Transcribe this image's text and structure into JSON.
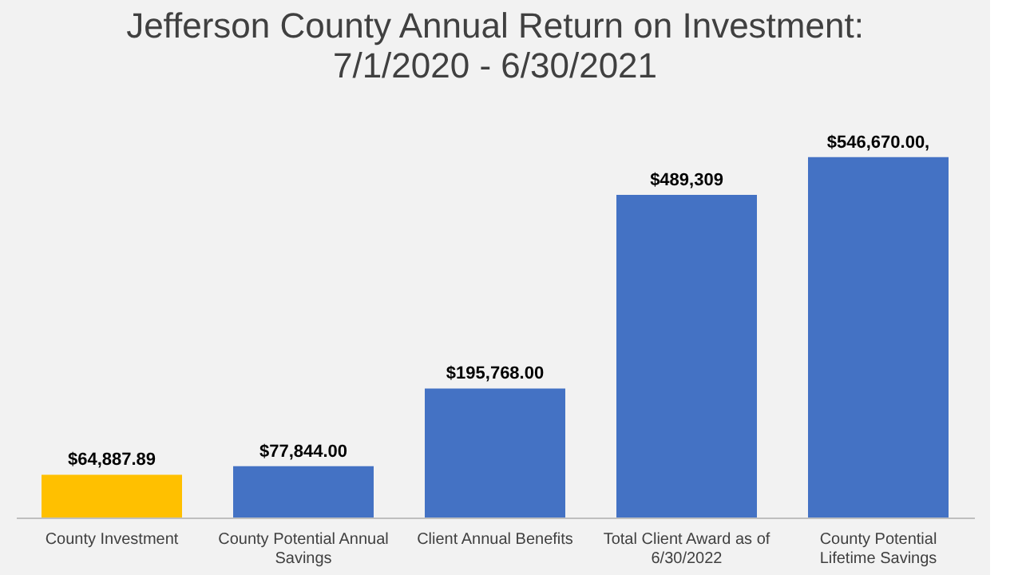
{
  "chart_data": {
    "type": "bar",
    "title": "Jefferson County Annual Return on Investment:",
    "subtitle": "7/1/2020 - 6/30/2021",
    "categories": [
      "County Investment",
      "County Potential Annual Savings",
      "Client Annual Benefits",
      "Total Client Award as of 6/30/2022",
      "County Potential Lifetime Savings"
    ],
    "values": [
      64887.89,
      77844.0,
      195768.0,
      489309,
      546670.0
    ],
    "colors": [
      "#ffc000",
      "#4472c4",
      "#4472c4",
      "#4472c4",
      "#4472c4"
    ],
    "value_labels": [
      "$64,887.89",
      "$77,844.00",
      "$195,768.00",
      "$489,309",
      "$546,670.00,"
    ],
    "grid": false
  }
}
